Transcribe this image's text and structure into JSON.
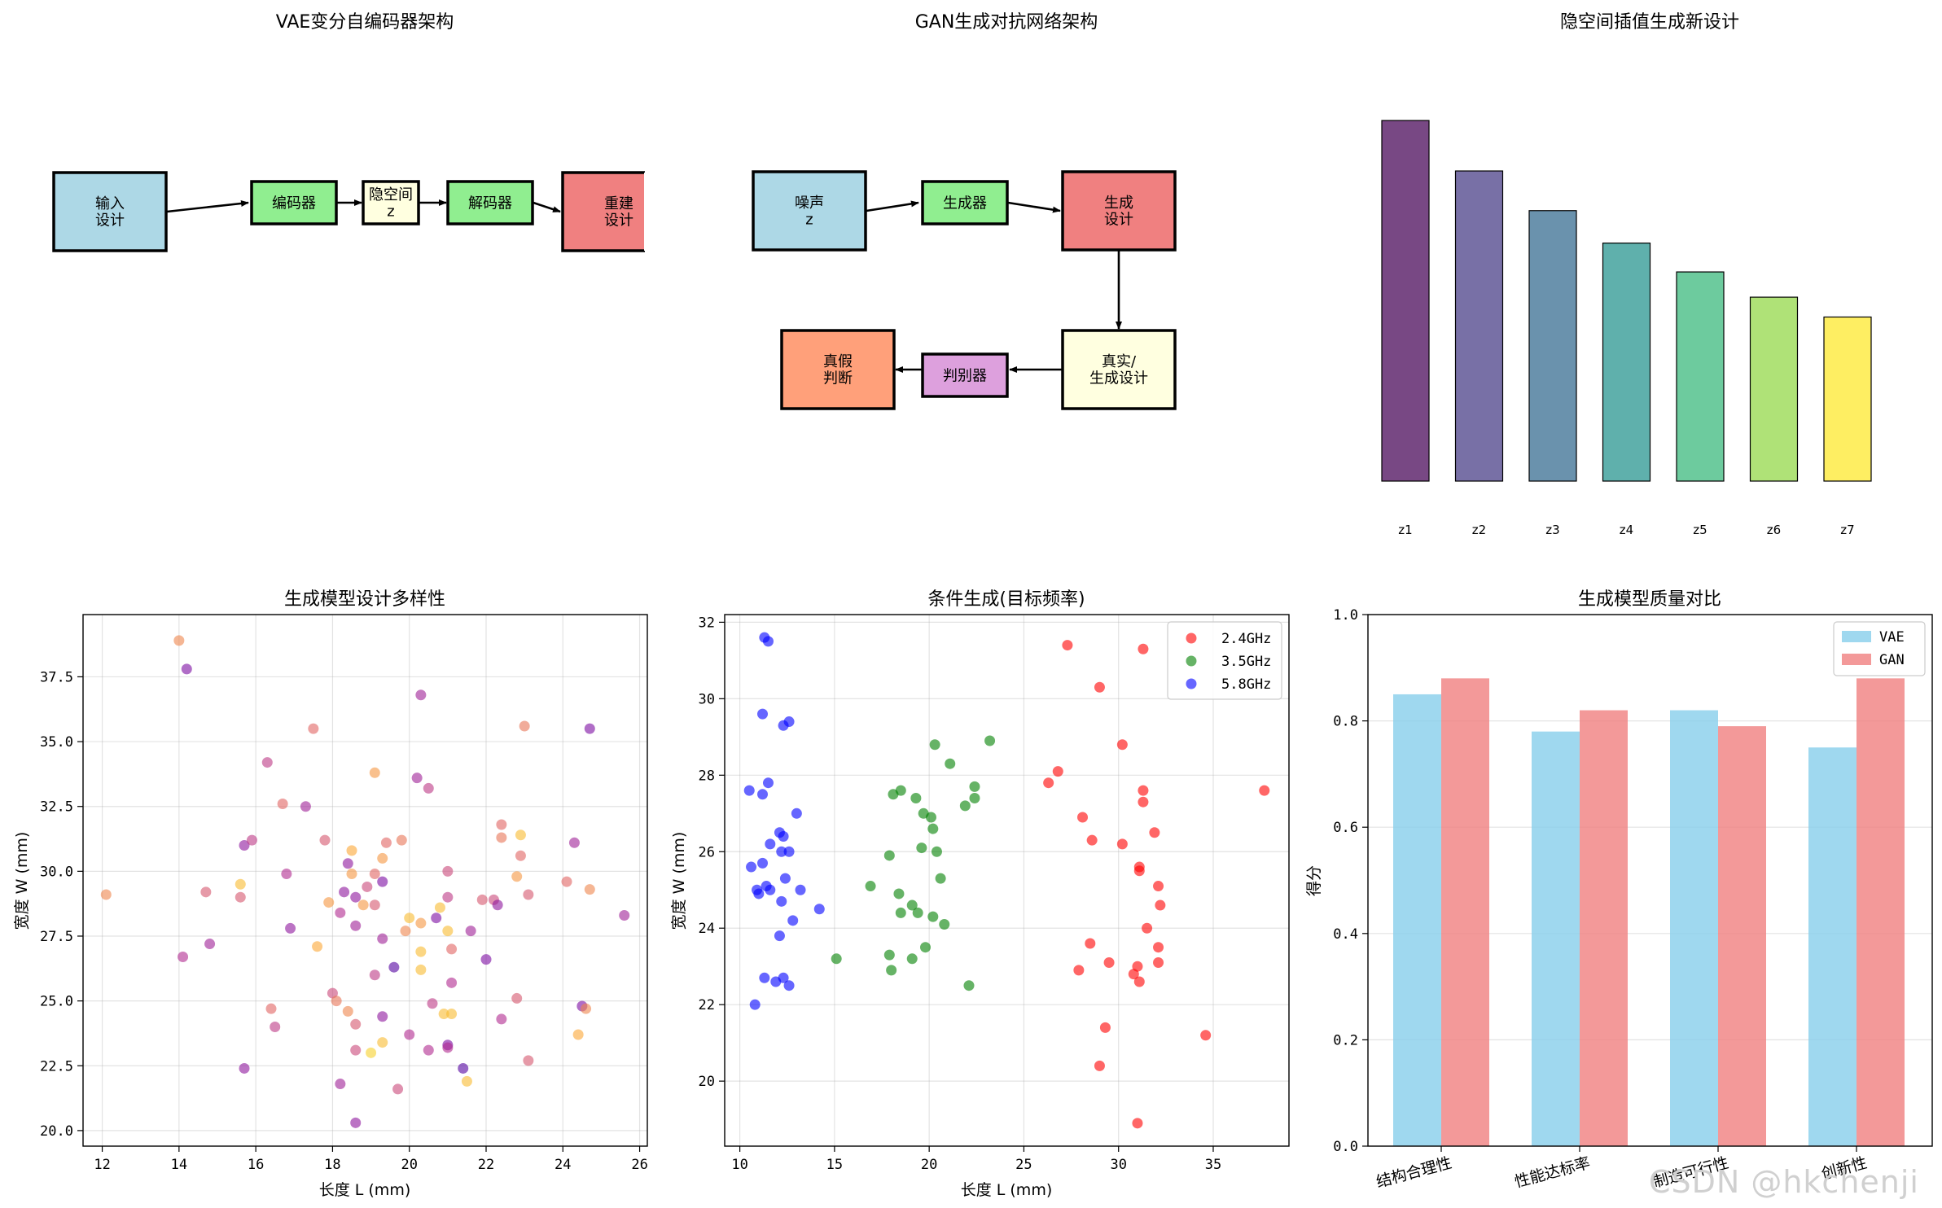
{
  "colors": {
    "lightblue": "#add8e6",
    "lightgreen": "#90ee90",
    "lightyellow": "#ffffe0",
    "lightcoral": "#f08080",
    "lightsalmon": "#ffa07a",
    "plum": "#dda0dd",
    "freq": [
      "#ff0000",
      "#008000",
      "#0000ff"
    ],
    "vae": "#87ceeb",
    "gan": "#f08080"
  },
  "vae": {
    "title": "VAE变分自编码器架构",
    "boxes": [
      {
        "label": "输入\n设计",
        "color": "#add8e6"
      },
      {
        "label": "编码器",
        "color": "#90ee90"
      },
      {
        "label": "隐空间\nz",
        "color": "#ffffe0"
      },
      {
        "label": "解码器",
        "color": "#90ee90"
      },
      {
        "label": "重建\n设计",
        "color": "#f08080"
      }
    ]
  },
  "gan": {
    "title": "GAN生成对抗网络架构",
    "boxes": [
      {
        "label": "噪声\nz",
        "color": "#add8e6"
      },
      {
        "label": "生成器",
        "color": "#90ee90"
      },
      {
        "label": "生成\n设计",
        "color": "#f08080"
      },
      {
        "label": "真实/\n生成设计",
        "color": "#ffffe0"
      },
      {
        "label": "判别器",
        "color": "#dda0dd"
      },
      {
        "label": "真假\n判断",
        "color": "#ffa07a"
      }
    ]
  },
  "latent": {
    "title": "隐空间插值生成新设计",
    "labels": [
      "z1",
      "z2",
      "z3",
      "z4",
      "z5",
      "z6",
      "z7"
    ],
    "values": [
      1.0,
      0.86,
      0.75,
      0.66,
      0.58,
      0.51,
      0.455
    ],
    "colors": [
      "#440154",
      "#443983",
      "#31688e",
      "#21918c",
      "#35b779",
      "#90d743",
      "#fde725"
    ]
  },
  "chart_data": [
    {
      "type": "scatter",
      "title": "生成模型设计多样性",
      "xlabel": "长度 L (mm)",
      "ylabel": "宽度 W (mm)",
      "xlim": [
        11.5,
        26.2
      ],
      "ylim": [
        19.4,
        39.9
      ],
      "xticks": [
        12,
        14,
        16,
        18,
        20,
        22,
        24,
        26
      ],
      "yticks": [
        20.0,
        22.5,
        25.0,
        27.5,
        30.0,
        32.5,
        35.0,
        37.5
      ],
      "colormap": [
        "#0d0887",
        "#6a00a8",
        "#b12a90",
        "#e16462",
        "#fca636",
        "#f0f921"
      ],
      "points": [
        [
          14.0,
          38.9,
          0.7
        ],
        [
          14.2,
          37.8,
          0.25
        ],
        [
          12.1,
          29.1,
          0.7
        ],
        [
          14.1,
          26.7,
          0.4
        ],
        [
          14.7,
          29.2,
          0.55
        ],
        [
          14.8,
          27.2,
          0.35
        ],
        [
          15.6,
          29.0,
          0.55
        ],
        [
          15.6,
          29.5,
          0.85
        ],
        [
          15.7,
          31.0,
          0.3
        ],
        [
          15.7,
          22.4,
          0.3
        ],
        [
          15.9,
          31.2,
          0.45
        ],
        [
          16.3,
          34.2,
          0.45
        ],
        [
          16.4,
          24.7,
          0.6
        ],
        [
          16.5,
          24.0,
          0.45
        ],
        [
          16.7,
          32.6,
          0.6
        ],
        [
          16.8,
          29.9,
          0.4
        ],
        [
          16.9,
          27.8,
          0.3
        ],
        [
          17.3,
          32.5,
          0.35
        ],
        [
          17.5,
          35.5,
          0.6
        ],
        [
          17.6,
          27.1,
          0.8
        ],
        [
          17.8,
          31.2,
          0.55
        ],
        [
          17.9,
          28.8,
          0.75
        ],
        [
          18.0,
          25.3,
          0.5
        ],
        [
          18.1,
          25.0,
          0.65
        ],
        [
          18.2,
          28.4,
          0.4
        ],
        [
          18.2,
          21.8,
          0.35
        ],
        [
          18.3,
          29.2,
          0.3
        ],
        [
          18.4,
          30.3,
          0.3
        ],
        [
          18.4,
          24.6,
          0.7
        ],
        [
          18.5,
          30.8,
          0.8
        ],
        [
          18.5,
          29.9,
          0.75
        ],
        [
          18.6,
          29.0,
          0.3
        ],
        [
          18.6,
          27.9,
          0.35
        ],
        [
          18.6,
          24.1,
          0.55
        ],
        [
          18.6,
          23.1,
          0.5
        ],
        [
          18.6,
          20.3,
          0.3
        ],
        [
          18.8,
          28.7,
          0.75
        ],
        [
          18.9,
          29.4,
          0.5
        ],
        [
          19.0,
          23.0,
          0.9
        ],
        [
          19.1,
          33.8,
          0.75
        ],
        [
          19.1,
          29.9,
          0.6
        ],
        [
          19.1,
          28.7,
          0.55
        ],
        [
          19.1,
          26.0,
          0.45
        ],
        [
          19.3,
          30.5,
          0.75
        ],
        [
          19.3,
          29.6,
          0.25
        ],
        [
          19.3,
          27.4,
          0.35
        ],
        [
          19.3,
          24.4,
          0.3
        ],
        [
          19.3,
          23.4,
          0.85
        ],
        [
          19.4,
          31.1,
          0.6
        ],
        [
          19.6,
          26.3,
          0.15
        ],
        [
          19.7,
          21.6,
          0.5
        ],
        [
          19.8,
          31.2,
          0.65
        ],
        [
          19.9,
          27.7,
          0.7
        ],
        [
          20.0,
          23.7,
          0.4
        ],
        [
          20.0,
          28.2,
          0.85
        ],
        [
          20.2,
          33.6,
          0.35
        ],
        [
          20.3,
          36.8,
          0.35
        ],
        [
          20.3,
          28.0,
          0.75
        ],
        [
          20.3,
          26.9,
          0.85
        ],
        [
          20.3,
          26.2,
          0.85
        ],
        [
          20.5,
          33.2,
          0.45
        ],
        [
          20.5,
          23.1,
          0.4
        ],
        [
          20.6,
          24.9,
          0.45
        ],
        [
          20.7,
          28.2,
          0.25
        ],
        [
          20.8,
          28.6,
          0.85
        ],
        [
          20.9,
          24.5,
          0.85
        ],
        [
          21.0,
          29.0,
          0.45
        ],
        [
          21.0,
          27.7,
          0.85
        ],
        [
          21.0,
          23.3,
          0.25
        ],
        [
          21.0,
          23.2,
          0.4
        ],
        [
          21.0,
          30.0,
          0.5
        ],
        [
          21.1,
          24.5,
          0.85
        ],
        [
          21.1,
          27.0,
          0.6
        ],
        [
          21.1,
          25.7,
          0.4
        ],
        [
          21.4,
          22.4,
          0.15
        ],
        [
          21.5,
          21.9,
          0.85
        ],
        [
          21.6,
          27.7,
          0.35
        ],
        [
          21.9,
          28.9,
          0.55
        ],
        [
          22.0,
          26.6,
          0.25
        ],
        [
          22.2,
          28.9,
          0.5
        ],
        [
          22.3,
          28.7,
          0.3
        ],
        [
          22.4,
          31.8,
          0.6
        ],
        [
          22.4,
          31.3,
          0.65
        ],
        [
          22.4,
          24.3,
          0.4
        ],
        [
          22.8,
          25.1,
          0.55
        ],
        [
          22.8,
          29.8,
          0.75
        ],
        [
          22.9,
          31.4,
          0.85
        ],
        [
          22.9,
          30.6,
          0.6
        ],
        [
          23.0,
          35.6,
          0.65
        ],
        [
          23.1,
          29.1,
          0.55
        ],
        [
          23.1,
          22.7,
          0.55
        ],
        [
          24.1,
          29.6,
          0.6
        ],
        [
          24.3,
          31.1,
          0.35
        ],
        [
          24.4,
          23.7,
          0.8
        ],
        [
          24.5,
          24.8,
          0.25
        ],
        [
          24.6,
          24.7,
          0.7
        ],
        [
          24.7,
          29.3,
          0.7
        ],
        [
          24.7,
          35.5,
          0.25
        ],
        [
          25.6,
          28.3,
          0.35
        ]
      ]
    },
    {
      "type": "scatter",
      "title": "条件生成(目标频率)",
      "xlabel": "长度 L (mm)",
      "ylabel": "宽度 W (mm)",
      "xlim": [
        9.2,
        39.0
      ],
      "ylim": [
        18.3,
        32.2
      ],
      "xticks": [
        10,
        15,
        20,
        25,
        30,
        35
      ],
      "yticks": [
        20,
        22,
        24,
        26,
        28,
        30,
        32
      ],
      "legend": [
        "2.4GHz",
        "3.5GHz",
        "5.8GHz"
      ],
      "series": [
        {
          "name": "2.4GHz",
          "points": [
            [
              27.3,
              31.4
            ],
            [
              31.3,
              31.3
            ],
            [
              29.0,
              30.3
            ],
            [
              30.2,
              28.8
            ],
            [
              26.8,
              28.1
            ],
            [
              26.3,
              27.8
            ],
            [
              31.3,
              27.6
            ],
            [
              37.7,
              27.6
            ],
            [
              31.3,
              27.3
            ],
            [
              28.1,
              26.9
            ],
            [
              31.9,
              26.5
            ],
            [
              28.6,
              26.3
            ],
            [
              30.2,
              26.2
            ],
            [
              31.1,
              25.6
            ],
            [
              31.1,
              25.5
            ],
            [
              32.1,
              25.1
            ],
            [
              32.2,
              24.6
            ],
            [
              31.5,
              24.0
            ],
            [
              28.5,
              23.6
            ],
            [
              32.1,
              23.5
            ],
            [
              29.5,
              23.1
            ],
            [
              31.0,
              23.0
            ],
            [
              32.1,
              23.1
            ],
            [
              27.9,
              22.9
            ],
            [
              30.8,
              22.8
            ],
            [
              31.1,
              22.6
            ],
            [
              29.3,
              21.4
            ],
            [
              34.6,
              21.2
            ],
            [
              29.0,
              20.4
            ],
            [
              31.0,
              18.9
            ]
          ]
        },
        {
          "name": "3.5GHz",
          "points": [
            [
              23.2,
              28.9
            ],
            [
              20.3,
              28.8
            ],
            [
              21.1,
              28.3
            ],
            [
              22.4,
              27.7
            ],
            [
              18.5,
              27.6
            ],
            [
              18.1,
              27.5
            ],
            [
              19.3,
              27.4
            ],
            [
              22.4,
              27.4
            ],
            [
              21.9,
              27.2
            ],
            [
              19.7,
              27.0
            ],
            [
              20.1,
              26.9
            ],
            [
              20.2,
              26.6
            ],
            [
              19.6,
              26.1
            ],
            [
              20.4,
              26.0
            ],
            [
              17.9,
              25.9
            ],
            [
              20.6,
              25.3
            ],
            [
              16.9,
              25.1
            ],
            [
              18.4,
              24.9
            ],
            [
              19.1,
              24.6
            ],
            [
              19.4,
              24.4
            ],
            [
              18.5,
              24.4
            ],
            [
              20.2,
              24.3
            ],
            [
              20.8,
              24.1
            ],
            [
              19.8,
              23.5
            ],
            [
              17.9,
              23.3
            ],
            [
              15.1,
              23.2
            ],
            [
              19.1,
              23.2
            ],
            [
              18.0,
              22.9
            ],
            [
              22.1,
              22.5
            ]
          ]
        },
        {
          "name": "5.8GHz",
          "points": [
            [
              11.3,
              31.6
            ],
            [
              11.5,
              31.5
            ],
            [
              11.2,
              29.6
            ],
            [
              12.6,
              29.4
            ],
            [
              12.3,
              29.3
            ],
            [
              11.5,
              27.8
            ],
            [
              10.5,
              27.6
            ],
            [
              11.2,
              27.5
            ],
            [
              13.0,
              27.0
            ],
            [
              12.1,
              26.5
            ],
            [
              12.3,
              26.4
            ],
            [
              11.6,
              26.2
            ],
            [
              12.2,
              26.0
            ],
            [
              12.6,
              26.0
            ],
            [
              11.2,
              25.7
            ],
            [
              10.6,
              25.6
            ],
            [
              12.4,
              25.3
            ],
            [
              11.4,
              25.1
            ],
            [
              10.9,
              25.0
            ],
            [
              11.6,
              25.0
            ],
            [
              13.2,
              25.0
            ],
            [
              11.0,
              24.9
            ],
            [
              12.2,
              24.7
            ],
            [
              14.2,
              24.5
            ],
            [
              12.8,
              24.2
            ],
            [
              12.1,
              23.8
            ],
            [
              11.3,
              22.7
            ],
            [
              12.3,
              22.7
            ],
            [
              11.9,
              22.6
            ],
            [
              12.6,
              22.5
            ],
            [
              10.8,
              22.0
            ]
          ]
        }
      ]
    },
    {
      "type": "bar",
      "title": "生成模型质量对比",
      "ylabel": "得分",
      "ylim": [
        0,
        1.0
      ],
      "yticks": [
        0.0,
        0.2,
        0.4,
        0.6,
        0.8,
        1.0
      ],
      "categories": [
        "结构合理性",
        "性能达标率",
        "制造可行性",
        "创新性"
      ],
      "legend": [
        "VAE",
        "GAN"
      ],
      "series": [
        {
          "name": "VAE",
          "values": [
            0.85,
            0.78,
            0.82,
            0.75
          ]
        },
        {
          "name": "GAN",
          "values": [
            0.88,
            0.82,
            0.79,
            0.88
          ]
        }
      ]
    }
  ],
  "watermark": "CSDN @hkchenji"
}
